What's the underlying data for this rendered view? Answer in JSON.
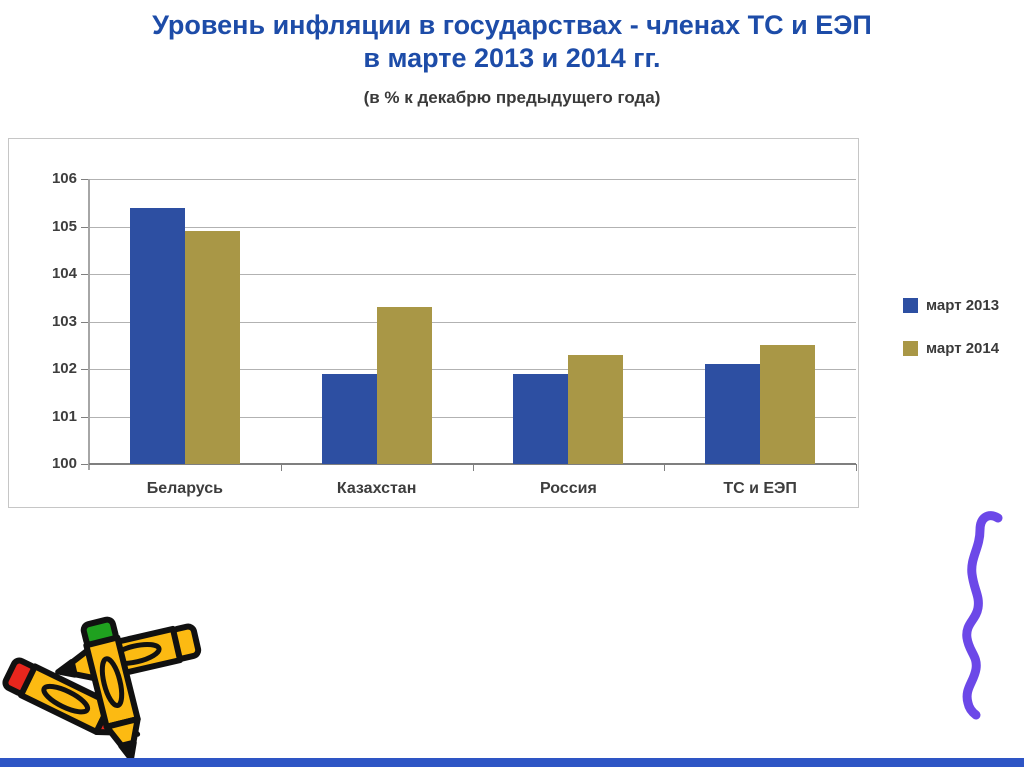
{
  "slide": {
    "title_line1": "Уровень инфляции в государствах - членах ТС и ЕЭП",
    "title_line2": "в марте 2013 и 2014 гг.",
    "subtitle": "(в % к декабрю предыдущего года)",
    "title_color": "#1d4ca8"
  },
  "chart_data": {
    "type": "bar",
    "title": "Уровень инфляции в государствах - членах ТС и ЕЭП в марте 2013 и 2014 гг.",
    "subtitle": "(в % к декабрю предыдущего года)",
    "categories": [
      "Беларусь",
      "Казахстан",
      "Россия",
      "ТС и ЕЭП"
    ],
    "series": [
      {
        "name": "март 2013",
        "color": "#2d4fa2",
        "values": [
          105.4,
          101.9,
          101.9,
          102.1
        ]
      },
      {
        "name": "март 2014",
        "color": "#a99746",
        "values": [
          104.9,
          103.3,
          102.3,
          102.5
        ]
      }
    ],
    "ylim": [
      100,
      106
    ],
    "yticks": [
      100,
      101,
      102,
      103,
      104,
      105,
      106
    ],
    "xlabel": "",
    "ylabel": "",
    "grid": true,
    "legend_position": "right"
  },
  "decorations": {
    "crayons_clipart": "crossed-crayons-icon",
    "crayon_colors": {
      "body": "#fcba12",
      "red": "#e8261d",
      "green": "#1fa11f",
      "outline": "#111111"
    },
    "squiggle_color": "#6c48e8",
    "bottom_bar_color": "#2e55c5"
  }
}
